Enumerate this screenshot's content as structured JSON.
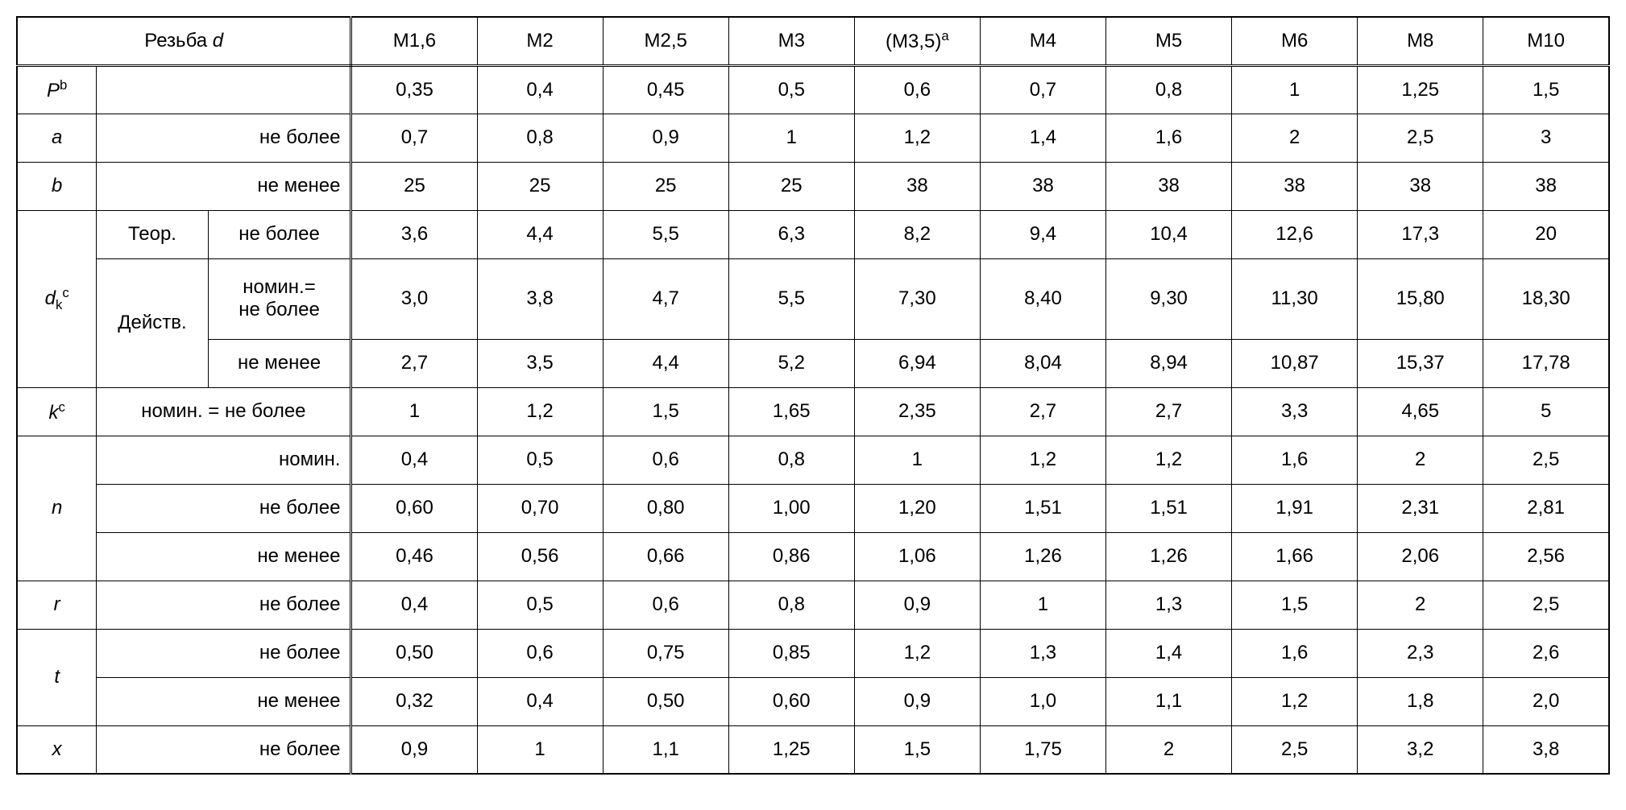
{
  "header": {
    "title": "Резьба d",
    "cols": [
      "M1,6",
      "M2",
      "M2,5",
      "M3",
      "(M3,5)ᵃ",
      "M4",
      "M5",
      "M6",
      "M8",
      "M10"
    ]
  },
  "rows": {
    "pb": {
      "label": "Pᵇ",
      "subLabel": "",
      "values": [
        "0,35",
        "0,4",
        "0,45",
        "0,5",
        "0,6",
        "0,7",
        "0,8",
        "1",
        "1,25",
        "1,5"
      ]
    },
    "a": {
      "label": "a",
      "subLabel": "не более",
      "values": [
        "0,7",
        "0,8",
        "0,9",
        "1",
        "1,2",
        "1,4",
        "1,6",
        "2",
        "2,5",
        "3"
      ]
    },
    "b": {
      "label": "b",
      "subLabel": "не менее",
      "values": [
        "25",
        "25",
        "25",
        "25",
        "38",
        "38",
        "38",
        "38",
        "38",
        "38"
      ]
    },
    "dk": {
      "label": "dₖᶜ",
      "row1": {
        "c1": "Теор.",
        "c2": "не более",
        "values": [
          "3,6",
          "4,4",
          "5,5",
          "6,3",
          "8,2",
          "9,4",
          "10,4",
          "12,6",
          "17,3",
          "20"
        ]
      },
      "row2": {
        "c1": "Действ.",
        "c2": "номин.= не более",
        "values": [
          "3,0",
          "3,8",
          "4,7",
          "5,5",
          "7,30",
          "8,40",
          "9,30",
          "11,30",
          "15,80",
          "18,30"
        ]
      },
      "row3": {
        "c2": "не менее",
        "values": [
          "2,7",
          "3,5",
          "4,4",
          "5,2",
          "6,94",
          "8,04",
          "8,94",
          "10,87",
          "15,37",
          "17,78"
        ]
      }
    },
    "kc": {
      "label": "kᶜ",
      "subLabel": "номин. = не более",
      "values": [
        "1",
        "1,2",
        "1,5",
        "1,65",
        "2,35",
        "2,7",
        "2,7",
        "3,3",
        "4,65",
        "5"
      ]
    },
    "n": {
      "label": "n",
      "row1": {
        "c2": "номин.",
        "values": [
          "0,4",
          "0,5",
          "0,6",
          "0,8",
          "1",
          "1,2",
          "1,2",
          "1,6",
          "2",
          "2,5"
        ]
      },
      "row2": {
        "c2": "не более",
        "values": [
          "0,60",
          "0,70",
          "0,80",
          "1,00",
          "1,20",
          "1,51",
          "1,51",
          "1,91",
          "2,31",
          "2,81"
        ]
      },
      "row3": {
        "c2": "не менее",
        "values": [
          "0,46",
          "0,56",
          "0,66",
          "0,86",
          "1,06",
          "1,26",
          "1,26",
          "1,66",
          "2,06",
          "2,56"
        ]
      }
    },
    "r": {
      "label": "r",
      "subLabel": "не более",
      "values": [
        "0,4",
        "0,5",
        "0,6",
        "0,8",
        "0,9",
        "1",
        "1,3",
        "1,5",
        "2",
        "2,5"
      ]
    },
    "t": {
      "label": "t",
      "row1": {
        "c2": "не более",
        "values": [
          "0,50",
          "0,6",
          "0,75",
          "0,85",
          "1,2",
          "1,3",
          "1,4",
          "1,6",
          "2,3",
          "2,6"
        ]
      },
      "row2": {
        "c2": "не менее",
        "values": [
          "0,32",
          "0,4",
          "0,50",
          "0,60",
          "0,9",
          "1,0",
          "1,1",
          "1,2",
          "1,8",
          "2,0"
        ]
      }
    },
    "x": {
      "label": "x",
      "subLabel": "не более",
      "values": [
        "0,9",
        "1",
        "1,1",
        "1,25",
        "1,5",
        "1,75",
        "2",
        "2,5",
        "3,2",
        "3,8"
      ]
    }
  }
}
